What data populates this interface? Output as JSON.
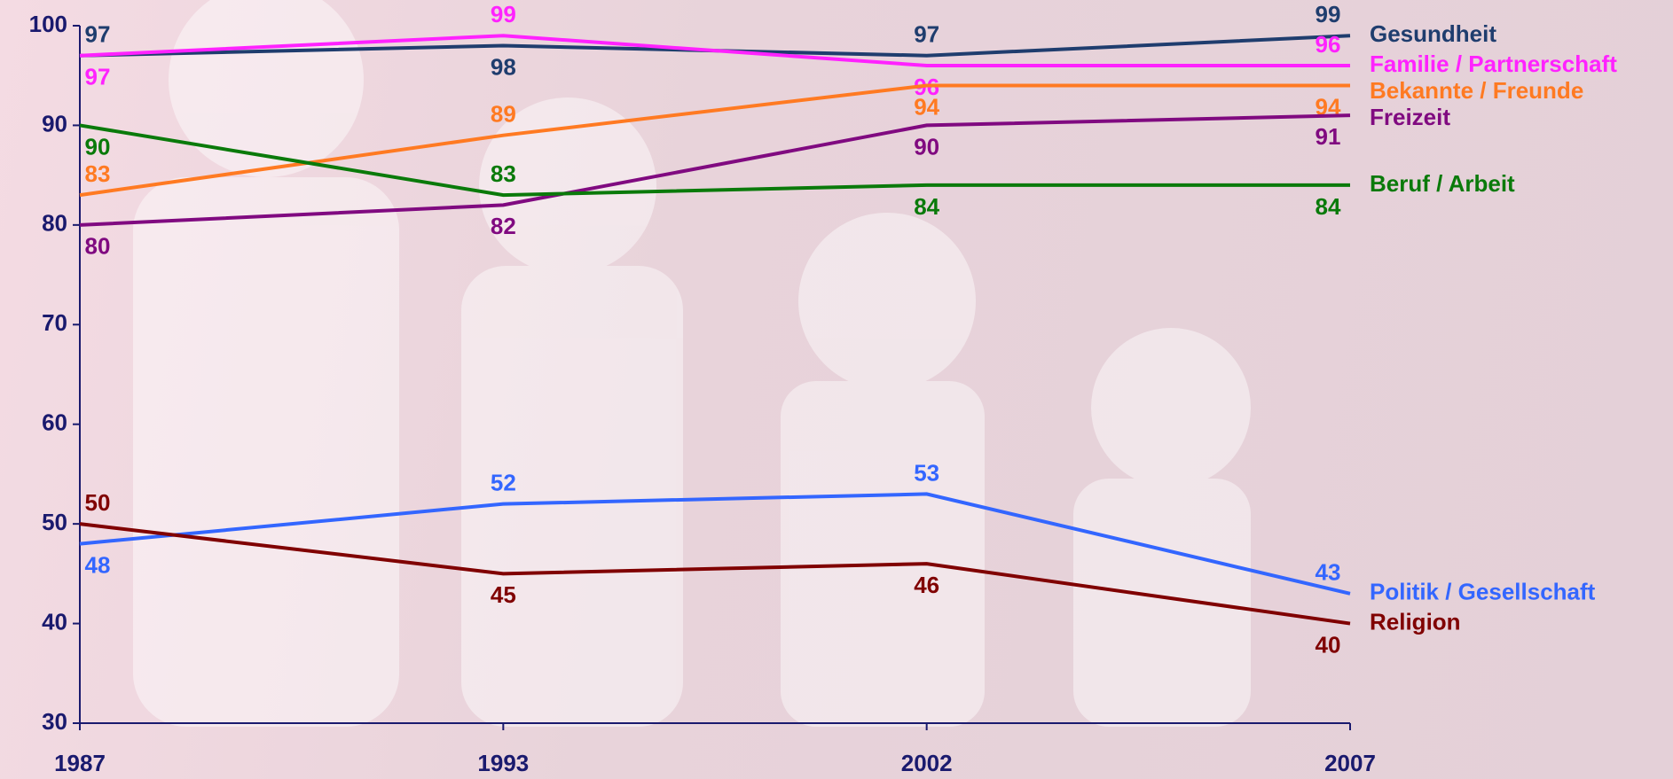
{
  "chart_data": {
    "type": "line",
    "categories": [
      "1987",
      "1993",
      "2002",
      "2007"
    ],
    "series": [
      {
        "name": "Gesundheit",
        "color": "#1f3d6e",
        "values": [
          97,
          98,
          97,
          99
        ]
      },
      {
        "name": "Familie / Partnerschaft",
        "color": "#ff22ff",
        "values": [
          97,
          99,
          96,
          96
        ]
      },
      {
        "name": "Bekannte / Freunde",
        "color": "#ff7a22",
        "values": [
          83,
          89,
          94,
          94
        ]
      },
      {
        "name": "Freizeit",
        "color": "#800a80",
        "values": [
          80,
          82,
          90,
          91
        ]
      },
      {
        "name": "Beruf / Arbeit",
        "color": "#0a7a0a",
        "values": [
          90,
          83,
          84,
          84
        ]
      },
      {
        "name": "Politik / Gesellschaft",
        "color": "#3366ff",
        "values": [
          48,
          52,
          53,
          43
        ]
      },
      {
        "name": "Religion",
        "color": "#800000",
        "values": [
          50,
          45,
          46,
          40
        ]
      }
    ],
    "ylim": [
      30,
      100
    ],
    "yticks": [
      30,
      40,
      50,
      60,
      70,
      80,
      90,
      100
    ]
  }
}
